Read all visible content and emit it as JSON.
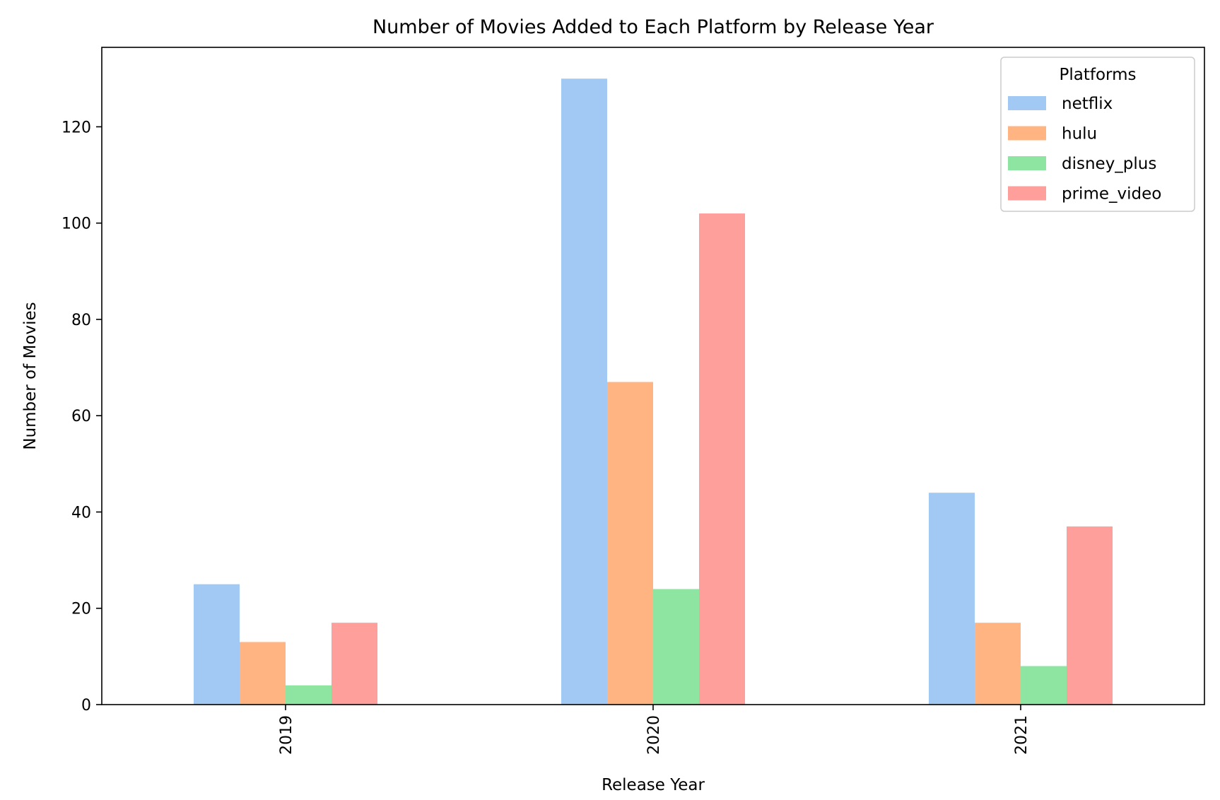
{
  "chart_data": {
    "type": "bar",
    "title": "Number of Movies Added to Each Platform by Release Year",
    "xlabel": "Release Year",
    "ylabel": "Number of Movies",
    "categories": [
      "2019",
      "2020",
      "2021"
    ],
    "series": [
      {
        "name": "netflix",
        "values": [
          25,
          130,
          44
        ],
        "color": "#a1c9f4"
      },
      {
        "name": "hulu",
        "values": [
          13,
          67,
          17
        ],
        "color": "#ffb482"
      },
      {
        "name": "disney_plus",
        "values": [
          4,
          24,
          8
        ],
        "color": "#8de5a1"
      },
      {
        "name": "prime_video",
        "values": [
          17,
          102,
          37
        ],
        "color": "#ff9f9b"
      }
    ],
    "ylim": [
      0,
      136.5
    ],
    "yticks": [
      0,
      20,
      40,
      60,
      80,
      100,
      120
    ],
    "legend": {
      "title": "Platforms",
      "placement": "top-right"
    },
    "grid": false
  }
}
